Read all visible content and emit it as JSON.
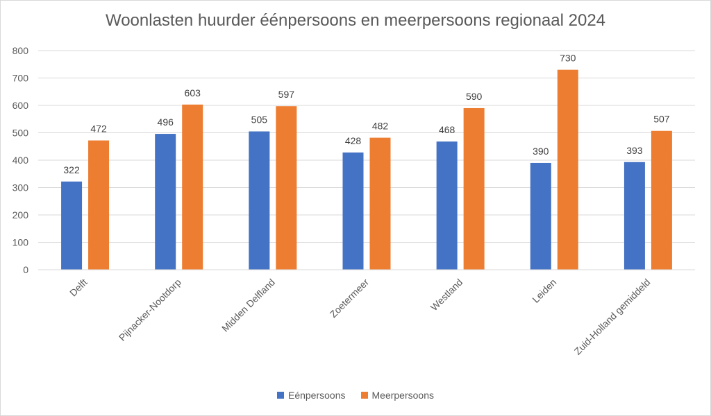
{
  "chart_data": {
    "type": "bar",
    "title": "Woonlasten huurder éénpersoons en meerpersoons regionaal 2024",
    "categories": [
      "Delft",
      "Pijnacker-Nootdorp",
      "Midden Delfland",
      "Zoetermeer",
      "Westland",
      "Leiden",
      "Zuid-Holland gemiddeld"
    ],
    "series": [
      {
        "name": "Eénpersoons",
        "color": "#4472c4",
        "values": [
          322,
          496,
          505,
          428,
          468,
          390,
          393
        ]
      },
      {
        "name": "Meerpersoons",
        "color": "#ed7d31",
        "values": [
          472,
          603,
          597,
          482,
          590,
          730,
          507
        ]
      }
    ],
    "ylim": [
      0,
      800
    ],
    "yticks": [
      0,
      100,
      200,
      300,
      400,
      500,
      600,
      700,
      800
    ],
    "grid": true,
    "legend_position": "bottom"
  }
}
